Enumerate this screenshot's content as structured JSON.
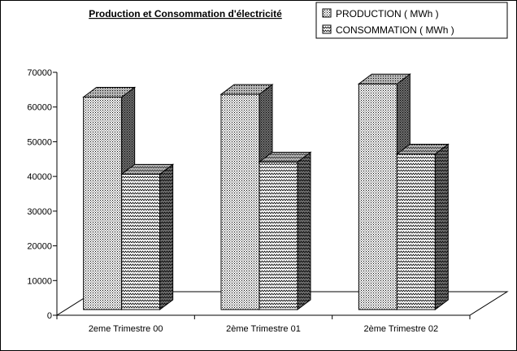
{
  "chart_data": {
    "type": "bar",
    "title": "Production et Consommation d'électricité",
    "categories": [
      "2eme Trimestre 00",
      "2ème Trimestre 01",
      "2ème Trimestre 02"
    ],
    "series": [
      {
        "name": "PRODUCTION ( MWh )",
        "values": [
          65200,
          66000,
          69000
        ],
        "pattern": "dots"
      },
      {
        "name": "CONSOMMATION ( MWh )",
        "values": [
          43000,
          46500,
          48800
        ],
        "pattern": "waves"
      }
    ],
    "ylim": [
      0,
      70000
    ],
    "yticks": [
      0,
      10000,
      20000,
      30000,
      40000,
      50000,
      60000,
      70000
    ],
    "grid": false,
    "legend_position": "top-right",
    "projection": "3d"
  }
}
